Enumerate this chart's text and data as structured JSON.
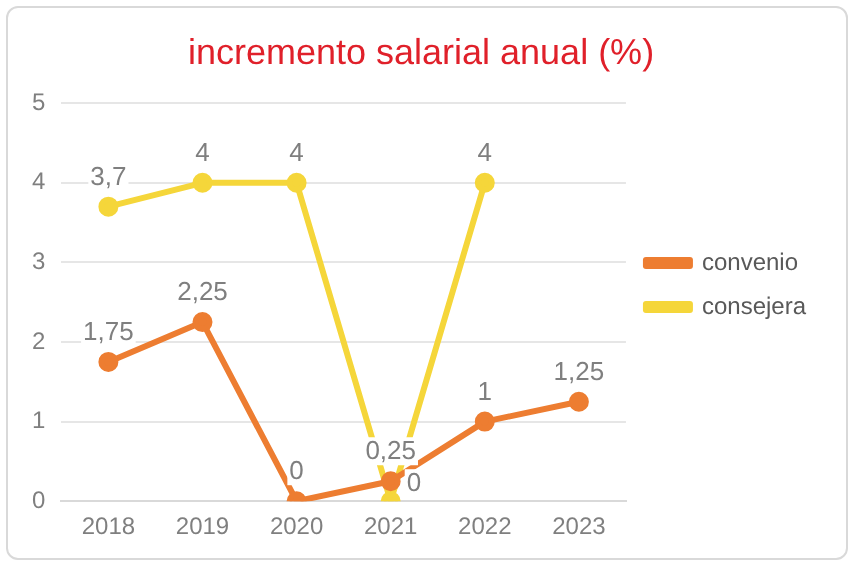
{
  "chart_data": {
    "type": "line",
    "title": "incremento salarial anual (%)",
    "categories": [
      "2018",
      "2019",
      "2020",
      "2021",
      "2022",
      "2023"
    ],
    "series": [
      {
        "name": "convenio",
        "color": "#ed7d31",
        "values": [
          1.75,
          2.25,
          0,
          0.25,
          1,
          1.25
        ],
        "value_labels": [
          "1,75",
          "2,25",
          "0",
          "0,25",
          "1",
          "1,25"
        ]
      },
      {
        "name": "consejera",
        "color": "#f5d63a",
        "values": [
          3.7,
          4,
          4,
          0,
          4,
          null
        ],
        "value_labels": [
          "3,7",
          "4",
          "4",
          "0",
          "4",
          null
        ]
      }
    ],
    "ylim": [
      0,
      5
    ],
    "yticks": [
      0,
      1,
      2,
      3,
      4,
      5
    ],
    "grid": "y",
    "legend": "right",
    "marker": "circle",
    "line_style": "solid"
  }
}
